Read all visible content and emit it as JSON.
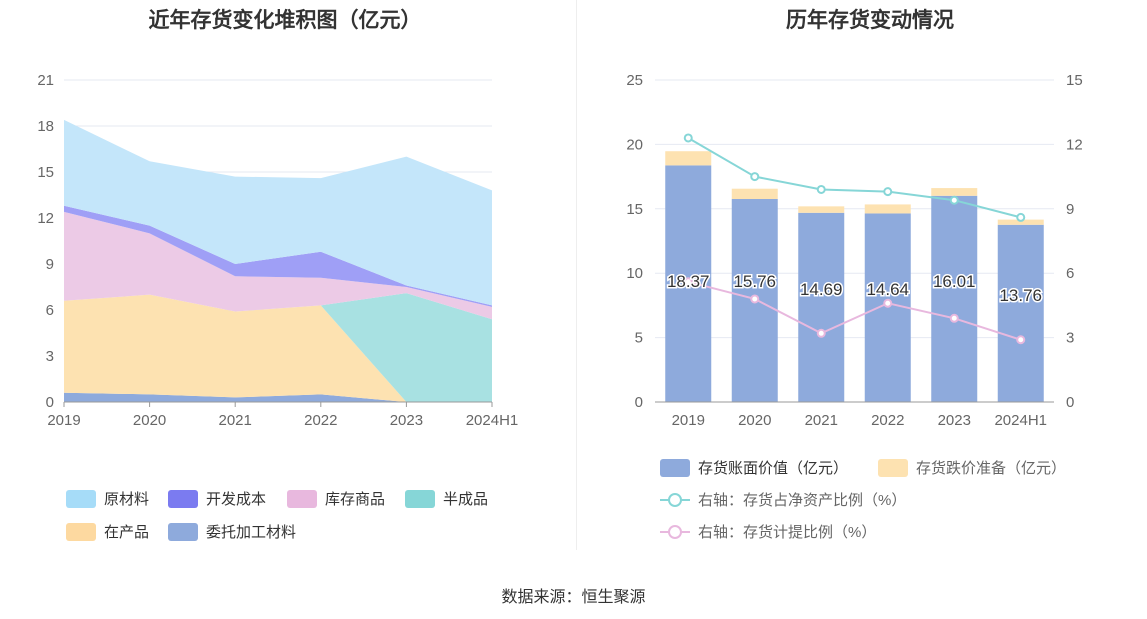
{
  "left": {
    "title": "近年存货变化堆积图（亿元）",
    "chart_data": {
      "type": "area",
      "stacked": true,
      "categories": [
        "2019",
        "2020",
        "2021",
        "2022",
        "2023",
        "2024H1"
      ],
      "ylim": [
        0,
        21
      ],
      "yticks": [
        "0",
        "3",
        "6",
        "9",
        "12",
        "15",
        "18",
        "21"
      ],
      "series": [
        {
          "name": "委托加工材料",
          "color": "#8eaadc",
          "values": [
            0.6,
            0.5,
            0.3,
            0.5,
            0.0,
            0.0
          ]
        },
        {
          "name": "在产品",
          "color": "#fde2b1",
          "values": [
            6.0,
            6.5,
            5.6,
            5.8,
            0.0,
            0.0
          ]
        },
        {
          "name": "半成品",
          "color": "#a8e1e2",
          "values": [
            0.0,
            0.0,
            0.0,
            0.0,
            7.1,
            5.4
          ]
        },
        {
          "name": "库存商品",
          "color": "#eccae6",
          "values": [
            5.8,
            4.0,
            2.3,
            1.8,
            0.4,
            0.8
          ]
        },
        {
          "name": "开发成本",
          "color": "#9f9ff6",
          "values": [
            0.4,
            0.5,
            0.8,
            1.7,
            0.1,
            0.1
          ]
        },
        {
          "name": "原材料",
          "color": "#c4e6fa",
          "values": [
            5.6,
            4.2,
            5.7,
            4.8,
            8.4,
            7.5
          ]
        }
      ],
      "legend_order": [
        "原材料",
        "开发成本",
        "库存商品",
        "半成品",
        "在产品",
        "委托加工材料"
      ],
      "legend_colors": {
        "原材料": "#a6dcf8",
        "开发成本": "#7b7bf0",
        "库存商品": "#e8b8de",
        "半成品": "#86d6d7",
        "在产品": "#fdd9a0",
        "委托加工材料": "#8eaadc"
      }
    }
  },
  "right": {
    "title": "历年存货变动情况",
    "chart_data": {
      "type": "bar",
      "stacked": true,
      "categories": [
        "2019",
        "2020",
        "2021",
        "2022",
        "2023",
        "2024H1"
      ],
      "ylim_left": [
        0,
        25
      ],
      "ylim_right": [
        0,
        15
      ],
      "yticks_left": [
        "0",
        "5",
        "10",
        "15",
        "20",
        "25"
      ],
      "yticks_right": [
        "0",
        "3",
        "6",
        "9",
        "12",
        "15"
      ],
      "series": [
        {
          "name": "存货账面价值（亿元）",
          "color": "#8eaadc",
          "values": [
            18.37,
            15.76,
            14.69,
            14.64,
            16.01,
            13.76
          ],
          "labels": [
            "18.37",
            "15.76",
            "14.69",
            "14.64",
            "16.01",
            "13.76"
          ]
        },
        {
          "name": "存货跌价准备（亿元）",
          "color": "#fde2b1",
          "values": [
            1.1,
            0.8,
            0.5,
            0.7,
            0.6,
            0.4
          ]
        }
      ],
      "lines": [
        {
          "name": "右轴：存货占净资产比例（%）",
          "color": "#86d6d7",
          "values": [
            12.3,
            10.5,
            9.9,
            9.8,
            9.4,
            8.6
          ]
        },
        {
          "name": "右轴：存货计提比例（%）",
          "color": "#e8b8de",
          "values": [
            5.6,
            4.8,
            3.2,
            4.6,
            3.9,
            2.9
          ]
        }
      ]
    }
  },
  "footer": {
    "source": "数据来源：恒生聚源"
  }
}
